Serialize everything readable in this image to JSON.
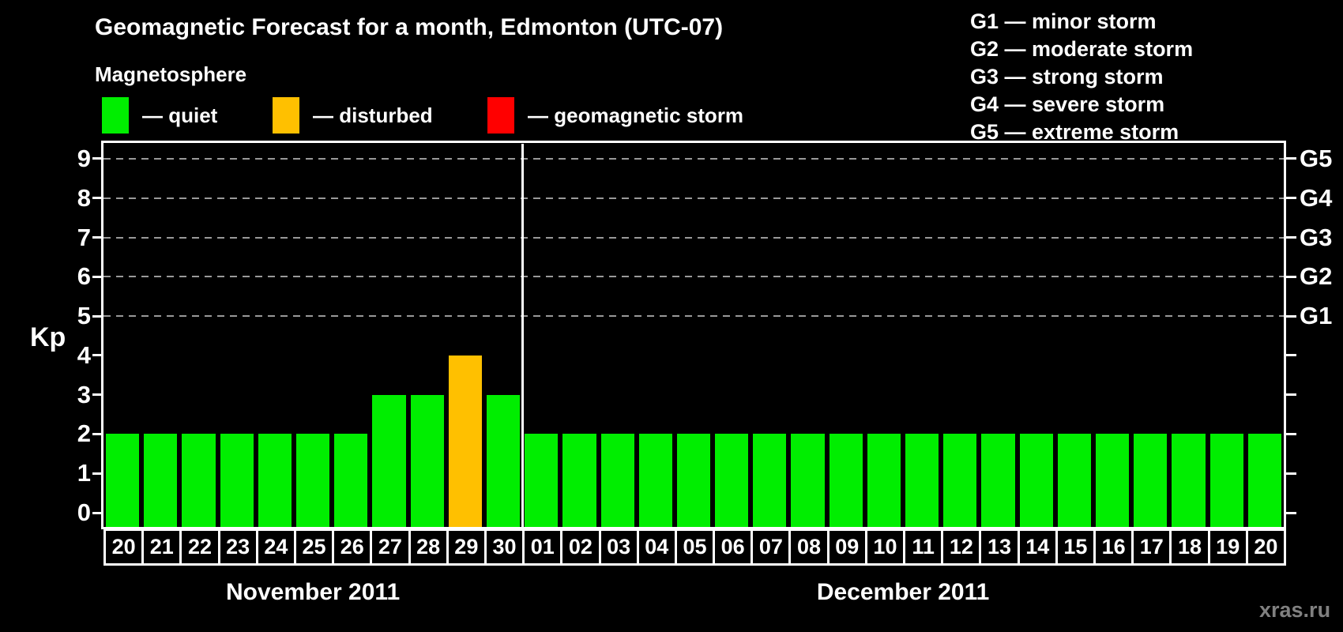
{
  "title": "Geomagnetic Forecast for a month, Edmonton (UTC-07)",
  "subtitle": "Magnetosphere",
  "legend": {
    "items": [
      {
        "name": "quiet",
        "label": "— quiet",
        "color": "#00ee00"
      },
      {
        "name": "disturbed",
        "label": "— disturbed",
        "color": "#ffc000"
      },
      {
        "name": "storm",
        "label": "— geomagnetic storm",
        "color": "#ff0000"
      }
    ]
  },
  "g_legend": [
    {
      "text": "G1 — minor storm"
    },
    {
      "text": "G2 — moderate storm"
    },
    {
      "text": "G3 — strong storm"
    },
    {
      "text": "G4 — severe storm"
    },
    {
      "text": "G5 — extreme storm"
    }
  ],
  "watermark": "xras.ru",
  "chart_data": {
    "type": "bar",
    "title": "Geomagnetic Forecast for a month, Edmonton (UTC-07)",
    "ylabel": "Kp",
    "ylim": [
      0,
      9
    ],
    "y_ticks": [
      0,
      1,
      2,
      3,
      4,
      5,
      6,
      7,
      8,
      9
    ],
    "gridlines_at": [
      5,
      6,
      7,
      8,
      9
    ],
    "grid": "dashed horizontal at G-storm levels only",
    "right_axis_labels": [
      {
        "kp": 5,
        "label": "G1"
      },
      {
        "kp": 6,
        "label": "G2"
      },
      {
        "kp": 7,
        "label": "G3"
      },
      {
        "kp": 8,
        "label": "G4"
      },
      {
        "kp": 9,
        "label": "G5"
      }
    ],
    "status_colors": {
      "quiet": "#00ee00",
      "disturbed": "#ffc000",
      "storm": "#ff0000"
    },
    "months": [
      {
        "label": "November 2011",
        "days": [
          {
            "day": "20",
            "kp": 2,
            "status": "quiet"
          },
          {
            "day": "21",
            "kp": 2,
            "status": "quiet"
          },
          {
            "day": "22",
            "kp": 2,
            "status": "quiet"
          },
          {
            "day": "23",
            "kp": 2,
            "status": "quiet"
          },
          {
            "day": "24",
            "kp": 2,
            "status": "quiet"
          },
          {
            "day": "25",
            "kp": 2,
            "status": "quiet"
          },
          {
            "day": "26",
            "kp": 2,
            "status": "quiet"
          },
          {
            "day": "27",
            "kp": 3,
            "status": "quiet"
          },
          {
            "day": "28",
            "kp": 3,
            "status": "quiet"
          },
          {
            "day": "29",
            "kp": 4,
            "status": "disturbed"
          },
          {
            "day": "30",
            "kp": 3,
            "status": "quiet"
          }
        ]
      },
      {
        "label": "December 2011",
        "days": [
          {
            "day": "01",
            "kp": 2,
            "status": "quiet"
          },
          {
            "day": "02",
            "kp": 2,
            "status": "quiet"
          },
          {
            "day": "03",
            "kp": 2,
            "status": "quiet"
          },
          {
            "day": "04",
            "kp": 2,
            "status": "quiet"
          },
          {
            "day": "05",
            "kp": 2,
            "status": "quiet"
          },
          {
            "day": "06",
            "kp": 2,
            "status": "quiet"
          },
          {
            "day": "07",
            "kp": 2,
            "status": "quiet"
          },
          {
            "day": "08",
            "kp": 2,
            "status": "quiet"
          },
          {
            "day": "09",
            "kp": 2,
            "status": "quiet"
          },
          {
            "day": "10",
            "kp": 2,
            "status": "quiet"
          },
          {
            "day": "11",
            "kp": 2,
            "status": "quiet"
          },
          {
            "day": "12",
            "kp": 2,
            "status": "quiet"
          },
          {
            "day": "13",
            "kp": 2,
            "status": "quiet"
          },
          {
            "day": "14",
            "kp": 2,
            "status": "quiet"
          },
          {
            "day": "15",
            "kp": 2,
            "status": "quiet"
          },
          {
            "day": "16",
            "kp": 2,
            "status": "quiet"
          },
          {
            "day": "17",
            "kp": 2,
            "status": "quiet"
          },
          {
            "day": "18",
            "kp": 2,
            "status": "quiet"
          },
          {
            "day": "19",
            "kp": 2,
            "status": "quiet"
          },
          {
            "day": "20",
            "kp": 2,
            "status": "quiet"
          }
        ]
      }
    ]
  }
}
